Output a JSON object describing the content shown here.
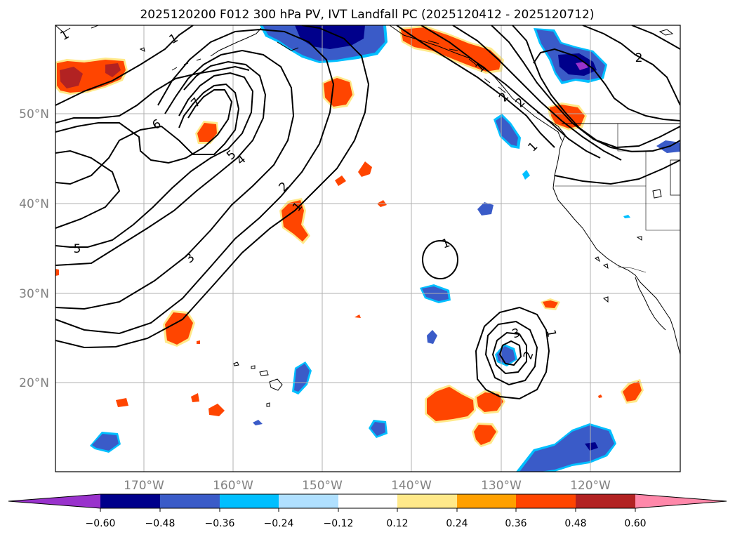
{
  "title": "2025120200 F012 300 hPa PV, IVT Landfall PC (2025120412 - 2025120712)",
  "lat_labels": [
    "50°N",
    "40°N",
    "30°N",
    "20°N"
  ],
  "lon_labels": [
    "170°W",
    "160°W",
    "150°W",
    "140°W",
    "130°W",
    "120°W"
  ],
  "colorbar": {
    "colors": [
      "#9932CC",
      "#00008B",
      "#3A5BC8",
      "#00BFFF",
      "#B0E0FF",
      "#FFFFFF",
      "#FFE98A",
      "#FFA000",
      "#FF4500",
      "#B22222",
      "#FF88AA"
    ],
    "tick_labels": [
      "−0.60",
      "−0.48",
      "−0.36",
      "−0.24",
      "−0.12",
      "0.12",
      "0.24",
      "0.36",
      "0.48",
      "0.60"
    ]
  },
  "contour_labels": [
    "1",
    "1",
    "2",
    "3",
    "4",
    "5",
    "5",
    "6",
    "7",
    "2",
    "1",
    "1",
    "1",
    "2",
    "3",
    "1",
    "2",
    "2",
    "1"
  ],
  "colors": {
    "grid": "#b0b0b0",
    "coast": "#000000",
    "contour": "#000000",
    "axis_label": "#808080"
  }
}
